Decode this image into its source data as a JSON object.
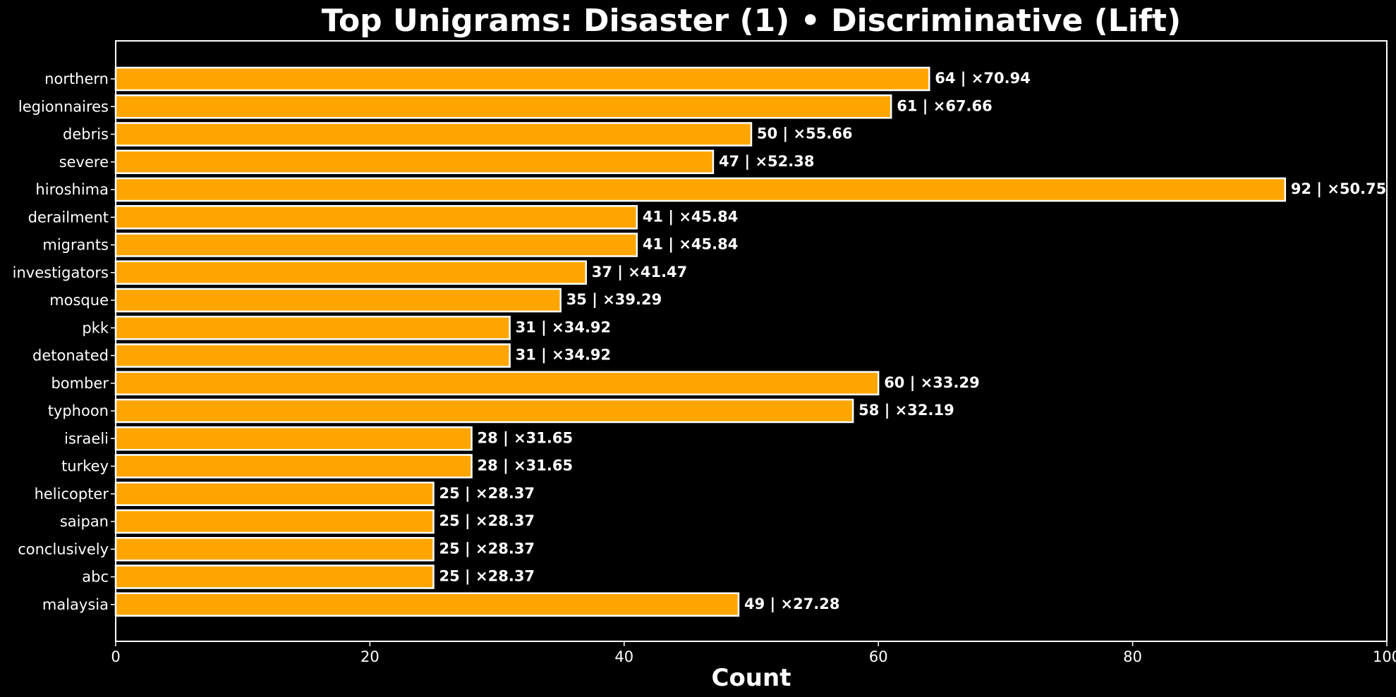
{
  "chart_data": {
    "type": "bar",
    "orientation": "horizontal",
    "title": "Top Unigrams: Disaster (1) • Discriminative (Lift)",
    "xlabel": "Count",
    "ylabel": "",
    "xlim": [
      0,
      100
    ],
    "xticks": [
      "0",
      "20",
      "40",
      "60",
      "80",
      "100"
    ],
    "grid": false,
    "bar_color": "#FFA500",
    "edge_color": "#ffffff",
    "background": "#000000",
    "categories": [
      "northern",
      "legionnaires",
      "debris",
      "severe",
      "hiroshima",
      "derailment",
      "migrants",
      "investigators",
      "mosque",
      "pkk",
      "detonated",
      "bomber",
      "typhoon",
      "israeli",
      "turkey",
      "helicopter",
      "saipan",
      "conclusively",
      "abc",
      "malaysia"
    ],
    "values": [
      64,
      61,
      50,
      47,
      92,
      41,
      41,
      37,
      35,
      31,
      31,
      60,
      58,
      28,
      28,
      25,
      25,
      25,
      25,
      49
    ],
    "lift": [
      70.94,
      67.66,
      55.66,
      52.38,
      50.75,
      45.84,
      45.84,
      41.47,
      39.29,
      34.92,
      34.92,
      33.29,
      32.19,
      31.65,
      31.65,
      28.37,
      28.37,
      28.37,
      28.37,
      27.28
    ],
    "data_labels": [
      "64 | ×70.94",
      "61 | ×67.66",
      "50 | ×55.66",
      "47 | ×52.38",
      "92 | ×50.75",
      "41 | ×45.84",
      "41 | ×45.84",
      "37 | ×41.47",
      "35 | ×39.29",
      "31 | ×34.92",
      "31 | ×34.92",
      "60 | ×33.29",
      "58 | ×32.19",
      "28 | ×31.65",
      "28 | ×31.65",
      "25 | ×28.37",
      "25 | ×28.37",
      "25 | ×28.37",
      "25 | ×28.37",
      "49 | ×27.28"
    ]
  }
}
